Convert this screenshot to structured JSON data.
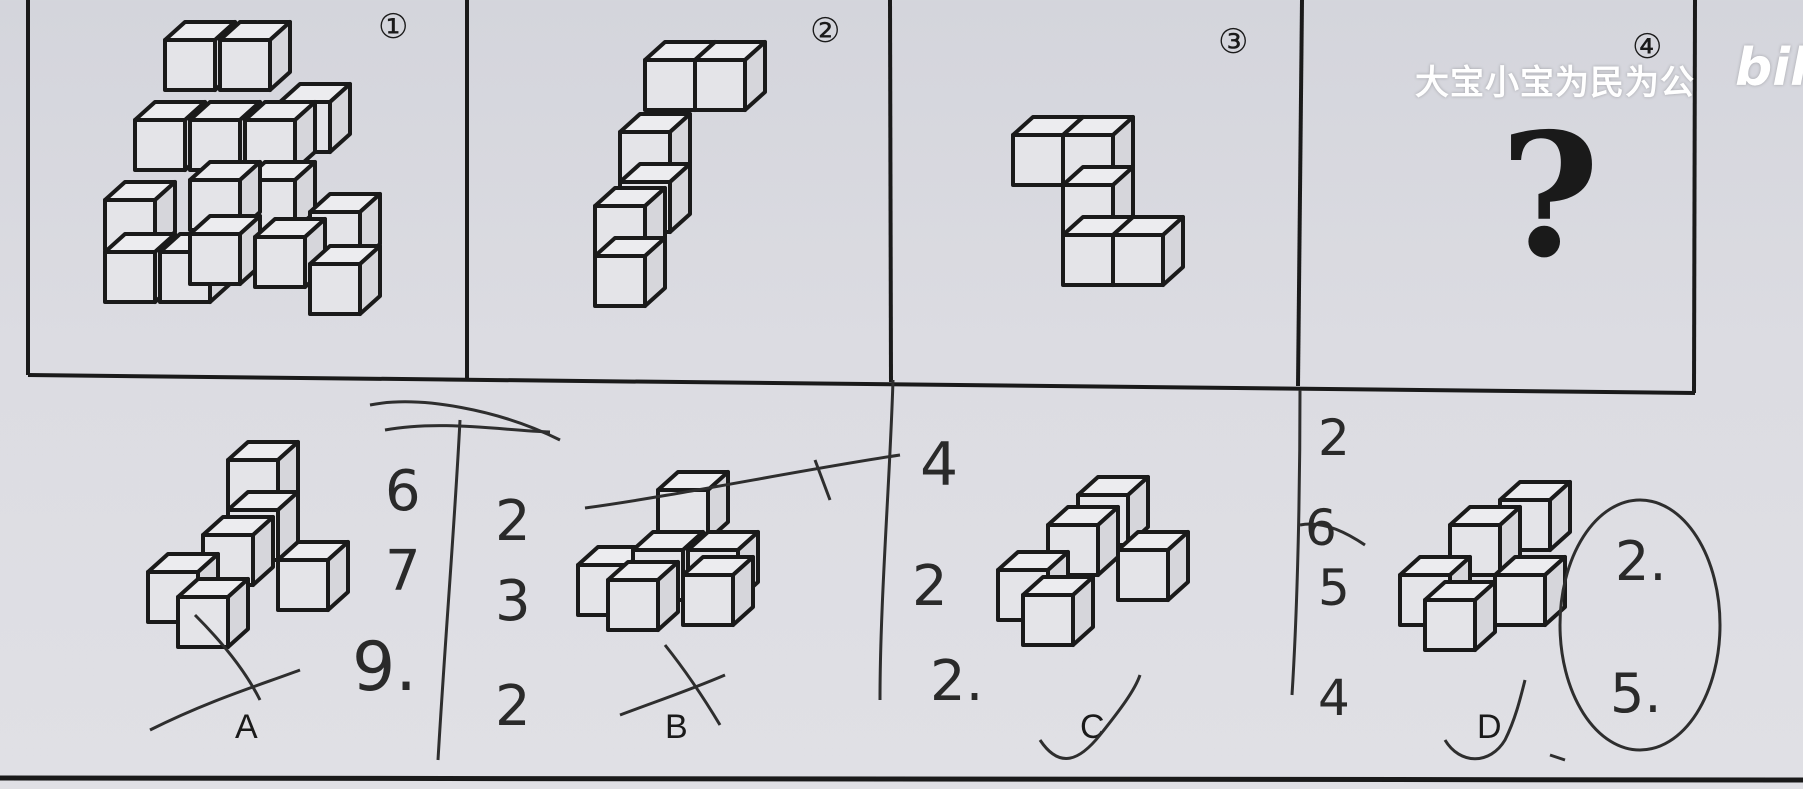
{
  "watermark": {
    "channel": "大宝小宝为民为公",
    "logo": "bili"
  },
  "puzzle": {
    "panel_numbers": [
      "①",
      "②",
      "③",
      "④"
    ],
    "question_mark": "?",
    "option_labels": [
      "A",
      "B",
      "C",
      "D"
    ]
  },
  "handwriting": {
    "a_counts": [
      "6",
      "7",
      "9."
    ],
    "b_counts": [
      "2",
      "3",
      "2"
    ],
    "b_extra": "4",
    "c_counts": [
      "2",
      "2."
    ],
    "d_counts": [
      "2",
      "6",
      "5",
      "4"
    ],
    "d_circled": [
      "2.",
      "5."
    ]
  },
  "colors": {
    "line": "#1a1a1a",
    "ink": "#2e2e2e",
    "paper": "#dcdce2"
  }
}
